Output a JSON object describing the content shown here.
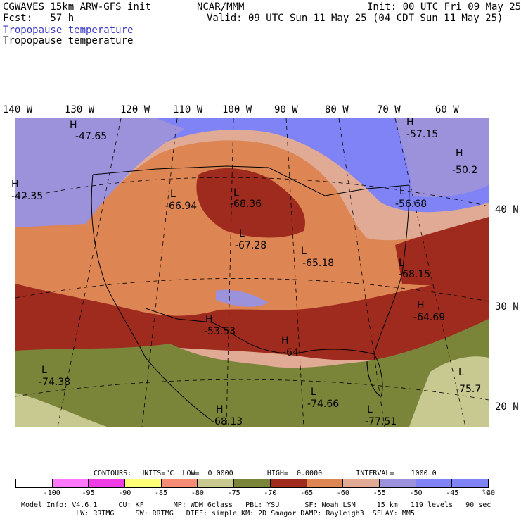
{
  "header": {
    "title_left": "CGWAVES 15km ARW-GFS init",
    "title_center": "NCAR/MMM",
    "init_time": "Init: 00 UTC Fri 09 May 25",
    "forecast": "Fcst:   57 h",
    "valid_time": "Valid: 09 UTC Sun 11 May 25 (04 CDT Sun 11 May 25)",
    "field_name_colored": "Tropopause temperature",
    "field_name": "Tropopause temperature"
  },
  "map": {
    "longitude_labels": [
      "140 W",
      "130 W",
      "120 W",
      "110 W",
      "100 W",
      "90 W",
      "80 W",
      "70 W",
      "60 W"
    ],
    "latitude_labels": [
      "40 N",
      "30 N",
      "20 N"
    ],
    "extrema": [
      {
        "type": "H",
        "value": "-47.65"
      },
      {
        "type": "H",
        "value": "-42.35"
      },
      {
        "type": "L",
        "value": "-66.94"
      },
      {
        "type": "L",
        "value": "-68.36"
      },
      {
        "type": "L",
        "value": "-67.28"
      },
      {
        "type": "L",
        "value": "-65.18"
      },
      {
        "type": "H",
        "value": "-57.15"
      },
      {
        "type": "H",
        "value": "-50.2"
      },
      {
        "type": "L",
        "value": "-56.68"
      },
      {
        "type": "L",
        "value": "-68.15"
      },
      {
        "type": "H",
        "value": "-64.69"
      },
      {
        "type": "H",
        "value": "-53.53"
      },
      {
        "type": "H",
        "value": "-64"
      },
      {
        "type": "L",
        "value": "-74.38"
      },
      {
        "type": "L",
        "value": "-74.66"
      },
      {
        "type": "H",
        "value": "-68.13"
      },
      {
        "type": "L",
        "value": "-77.51"
      },
      {
        "type": "L",
        "value": "-75.7"
      }
    ]
  },
  "contours": {
    "text": "CONTOURS:  UNITS=°C  LOW=  0.0000        HIGH=  0.0000        INTERVAL=    1000.0"
  },
  "colorbar": {
    "labels": [
      "-100",
      "-95",
      "-90",
      "-85",
      "-80",
      "-75",
      "-70",
      "-65",
      "-60",
      "-55",
      "-50",
      "-45",
      "-40",
      "°C"
    ],
    "colors": [
      "#ffffff",
      "#ff78ff",
      "#f03ce6",
      "#ffff78",
      "#f58c78",
      "#c8c891",
      "#7a853a",
      "#9e2b1e",
      "#de8554",
      "#e0aa94",
      "#9c92dc",
      "#7f83f6",
      "#7f83f6"
    ]
  },
  "model_info": {
    "line1": "Model Info: V4.6.1     CU: KF       MP: WDM 6class   PBL: YSU      SF: Noah LSM     15 km   119 levels   90 sec",
    "line2": "             LW: RRTMG     SW: RRTMG   DIFF: simple KM: 2D Smagor DAMP: Rayleigh3  SFLAY: MM5"
  }
}
